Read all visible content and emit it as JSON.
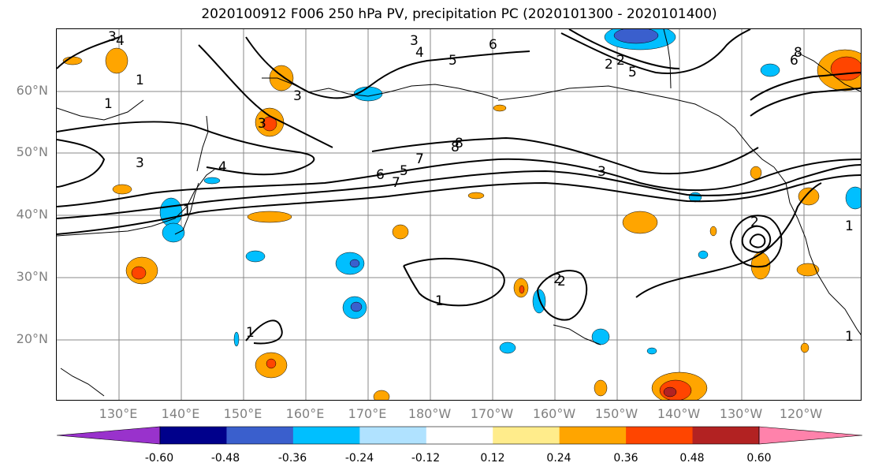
{
  "title": "2020100912 F006 250 hPa PV, precipitation PC (2020101300 - 2020101400)",
  "lat_labels": [
    "60°N",
    "50°N",
    "40°N",
    "30°N",
    "20°N"
  ],
  "lon_labels": [
    "130°E",
    "140°E",
    "150°E",
    "160°E",
    "170°E",
    "180°W",
    "170°W",
    "160°W",
    "150°W",
    "140°W",
    "130°W",
    "120°W"
  ],
  "colorbar": {
    "colors": [
      "#9932cc",
      "#00008b",
      "#3a5fcd",
      "#00bfff",
      "#b0e2ff",
      "#ffffff",
      "#ffec8b",
      "#ffa500",
      "#ff4500",
      "#b22222",
      "#ff82ab"
    ],
    "tick_labels": [
      "-0.60",
      "-0.48",
      "-0.36",
      "-0.24",
      "-0.12",
      "0.12",
      "0.24",
      "0.36",
      "0.48",
      "0.60"
    ]
  },
  "contour_labels": [
    "1",
    "2",
    "3",
    "4",
    "5",
    "6",
    "7",
    "8",
    "4",
    "3",
    "2",
    "1",
    "5",
    "6",
    "7",
    "8",
    "3",
    "2",
    "1",
    "2",
    "1",
    "1",
    "1",
    "3",
    "4",
    "5",
    "6",
    "8",
    "3",
    "2",
    "3",
    "1"
  ]
}
